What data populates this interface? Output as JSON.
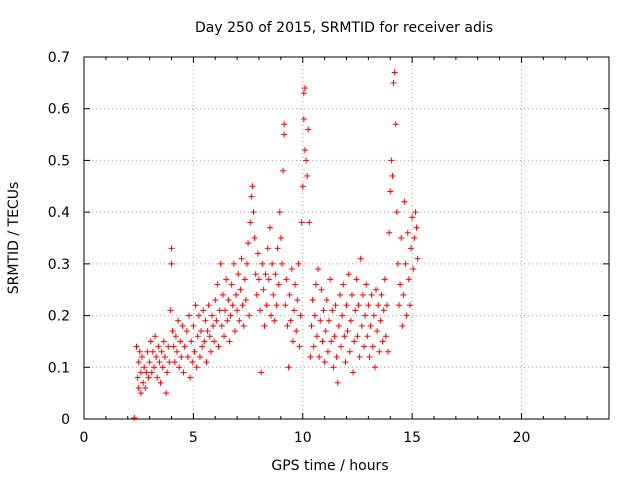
{
  "chart_data": {
    "type": "scatter",
    "title": "Day 250 of 2015, SRMTID for receiver adis",
    "xlabel": "GPS time / hours",
    "ylabel": "SRMTID / TECUs",
    "xlim": [
      0,
      24
    ],
    "ylim": [
      0,
      0.7
    ],
    "xticks": [
      0,
      5,
      10,
      15,
      20
    ],
    "yticks": [
      0,
      0.1,
      0.2,
      0.3,
      0.4,
      0.5,
      0.6,
      0.7
    ],
    "xtick_labels": [
      "0",
      "5",
      "10",
      "15",
      "20"
    ],
    "ytick_labels": [
      "0",
      "0.1",
      "0.2",
      "0.3",
      "0.4",
      "0.5",
      "0.6",
      "0.7"
    ],
    "grid": true,
    "marker": "+",
    "color": "#ff0000",
    "x_range_of_data": [
      2.3,
      15.3
    ],
    "series": [
      {
        "name": "SRMTID",
        "points": [
          [
            2.3,
            0.002
          ],
          [
            2.4,
            0.14
          ],
          [
            2.45,
            0.08
          ],
          [
            2.5,
            0.11
          ],
          [
            2.5,
            0.06
          ],
          [
            2.55,
            0.13
          ],
          [
            2.6,
            0.09
          ],
          [
            2.6,
            0.05
          ],
          [
            2.65,
            0.12
          ],
          [
            2.7,
            0.07
          ],
          [
            2.75,
            0.1
          ],
          [
            2.8,
            0.06
          ],
          [
            2.85,
            0.09
          ],
          [
            2.9,
            0.13
          ],
          [
            2.95,
            0.08
          ],
          [
            3.0,
            0.11
          ],
          [
            3.05,
            0.15
          ],
          [
            3.1,
            0.09
          ],
          [
            3.15,
            0.13
          ],
          [
            3.2,
            0.1
          ],
          [
            3.25,
            0.16
          ],
          [
            3.3,
            0.12
          ],
          [
            3.35,
            0.08
          ],
          [
            3.4,
            0.14
          ],
          [
            3.45,
            0.11
          ],
          [
            3.5,
            0.07
          ],
          [
            3.55,
            0.13
          ],
          [
            3.6,
            0.1
          ],
          [
            3.65,
            0.15
          ],
          [
            3.7,
            0.12
          ],
          [
            3.75,
            0.05
          ],
          [
            3.8,
            0.09
          ],
          [
            3.85,
            0.14
          ],
          [
            3.9,
            0.11
          ],
          [
            3.95,
            0.21
          ],
          [
            4.0,
            0.33
          ],
          [
            4.0,
            0.3
          ],
          [
            4.05,
            0.17
          ],
          [
            4.1,
            0.14
          ],
          [
            4.15,
            0.11
          ],
          [
            4.2,
            0.16
          ],
          [
            4.25,
            0.13
          ],
          [
            4.3,
            0.19
          ],
          [
            4.35,
            0.1
          ],
          [
            4.4,
            0.15
          ],
          [
            4.45,
            0.12
          ],
          [
            4.5,
            0.18
          ],
          [
            4.55,
            0.09
          ],
          [
            4.6,
            0.14
          ],
          [
            4.7,
            0.17
          ],
          [
            4.75,
            0.12
          ],
          [
            4.8,
            0.2
          ],
          [
            4.85,
            0.08
          ],
          [
            4.9,
            0.15
          ],
          [
            4.95,
            0.11
          ],
          [
            5.0,
            0.18
          ],
          [
            5.05,
            0.13
          ],
          [
            5.1,
            0.22
          ],
          [
            5.15,
            0.1
          ],
          [
            5.2,
            0.16
          ],
          [
            5.25,
            0.2
          ],
          [
            5.3,
            0.12
          ],
          [
            5.35,
            0.17
          ],
          [
            5.4,
            0.14
          ],
          [
            5.45,
            0.21
          ],
          [
            5.5,
            0.15
          ],
          [
            5.55,
            0.19
          ],
          [
            5.6,
            0.11
          ],
          [
            5.65,
            0.17
          ],
          [
            5.7,
            0.22
          ],
          [
            5.75,
            0.16
          ],
          [
            5.8,
            0.13
          ],
          [
            5.85,
            0.2
          ],
          [
            5.9,
            0.18
          ],
          [
            5.95,
            0.15
          ],
          [
            6.0,
            0.23
          ],
          [
            6.05,
            0.19
          ],
          [
            6.1,
            0.26
          ],
          [
            6.15,
            0.14
          ],
          [
            6.2,
            0.21
          ],
          [
            6.25,
            0.3
          ],
          [
            6.3,
            0.18
          ],
          [
            6.35,
            0.24
          ],
          [
            6.4,
            0.16
          ],
          [
            6.45,
            0.21
          ],
          [
            6.5,
            0.27
          ],
          [
            6.55,
            0.19
          ],
          [
            6.6,
            0.23
          ],
          [
            6.65,
            0.15
          ],
          [
            6.7,
            0.2
          ],
          [
            6.75,
            0.26
          ],
          [
            6.8,
            0.22
          ],
          [
            6.85,
            0.3
          ],
          [
            6.9,
            0.17
          ],
          [
            6.95,
            0.24
          ],
          [
            7.0,
            0.21
          ],
          [
            7.05,
            0.28
          ],
          [
            7.1,
            0.19
          ],
          [
            7.15,
            0.25
          ],
          [
            7.2,
            0.31
          ],
          [
            7.25,
            0.22
          ],
          [
            7.3,
            0.18
          ],
          [
            7.35,
            0.27
          ],
          [
            7.4,
            0.23
          ],
          [
            7.45,
            0.3
          ],
          [
            7.5,
            0.34
          ],
          [
            7.55,
            0.2
          ],
          [
            7.6,
            0.38
          ],
          [
            7.65,
            0.43
          ],
          [
            7.7,
            0.45
          ],
          [
            7.75,
            0.4
          ],
          [
            7.8,
            0.35
          ],
          [
            7.85,
            0.28
          ],
          [
            7.9,
            0.24
          ],
          [
            7.95,
            0.32
          ],
          [
            8.0,
            0.27
          ],
          [
            8.05,
            0.21
          ],
          [
            8.1,
            0.09
          ],
          [
            8.15,
            0.3
          ],
          [
            8.2,
            0.25
          ],
          [
            8.25,
            0.18
          ],
          [
            8.3,
            0.28
          ],
          [
            8.35,
            0.22
          ],
          [
            8.4,
            0.33
          ],
          [
            8.45,
            0.27
          ],
          [
            8.5,
            0.37
          ],
          [
            8.55,
            0.2
          ],
          [
            8.6,
            0.3
          ],
          [
            8.65,
            0.24
          ],
          [
            8.7,
            0.19
          ],
          [
            8.75,
            0.28
          ],
          [
            8.8,
            0.22
          ],
          [
            8.85,
            0.33
          ],
          [
            8.9,
            0.26
          ],
          [
            8.95,
            0.4
          ],
          [
            9.0,
            0.35
          ],
          [
            9.05,
            0.3
          ],
          [
            9.1,
            0.48
          ],
          [
            9.15,
            0.55
          ],
          [
            9.15,
            0.57
          ],
          [
            9.2,
            0.22
          ],
          [
            9.25,
            0.27
          ],
          [
            9.3,
            0.18
          ],
          [
            9.35,
            0.1
          ],
          [
            9.4,
            0.24
          ],
          [
            9.45,
            0.19
          ],
          [
            9.5,
            0.29
          ],
          [
            9.55,
            0.15
          ],
          [
            9.6,
            0.21
          ],
          [
            9.65,
            0.26
          ],
          [
            9.7,
            0.17
          ],
          [
            9.75,
            0.23
          ],
          [
            9.8,
            0.3
          ],
          [
            9.85,
            0.14
          ],
          [
            9.9,
            0.2
          ],
          [
            9.95,
            0.38
          ],
          [
            10.0,
            0.45
          ],
          [
            10.05,
            0.58
          ],
          [
            10.05,
            0.63
          ],
          [
            10.1,
            0.64
          ],
          [
            10.1,
            0.52
          ],
          [
            10.15,
            0.5
          ],
          [
            10.2,
            0.47
          ],
          [
            10.25,
            0.56
          ],
          [
            10.3,
            0.38
          ],
          [
            10.35,
            0.12
          ],
          [
            10.4,
            0.18
          ],
          [
            10.45,
            0.23
          ],
          [
            10.5,
            0.14
          ],
          [
            10.55,
            0.2
          ],
          [
            10.6,
            0.26
          ],
          [
            10.65,
            0.16
          ],
          [
            10.7,
            0.29
          ],
          [
            10.75,
            0.12
          ],
          [
            10.8,
            0.19
          ],
          [
            10.85,
            0.25
          ],
          [
            10.9,
            0.15
          ],
          [
            10.95,
            0.21
          ],
          [
            11.0,
            0.11
          ],
          [
            11.05,
            0.17
          ],
          [
            11.1,
            0.23
          ],
          [
            11.15,
            0.13
          ],
          [
            11.2,
            0.19
          ],
          [
            11.25,
            0.27
          ],
          [
            11.3,
            0.15
          ],
          [
            11.35,
            0.21
          ],
          [
            11.4,
            0.1
          ],
          [
            11.45,
            0.16
          ],
          [
            11.5,
            0.22
          ],
          [
            11.55,
            0.12
          ],
          [
            11.6,
            0.07
          ],
          [
            11.65,
            0.18
          ],
          [
            11.7,
            0.24
          ],
          [
            11.75,
            0.14
          ],
          [
            11.8,
            0.2
          ],
          [
            11.85,
            0.26
          ],
          [
            11.9,
            0.16
          ],
          [
            11.95,
            0.11
          ],
          [
            12.0,
            0.22
          ],
          [
            12.05,
            0.17
          ],
          [
            12.1,
            0.28
          ],
          [
            12.15,
            0.13
          ],
          [
            12.2,
            0.19
          ],
          [
            12.25,
            0.24
          ],
          [
            12.3,
            0.09
          ],
          [
            12.35,
            0.15
          ],
          [
            12.4,
            0.21
          ],
          [
            12.45,
            0.27
          ],
          [
            12.5,
            0.16
          ],
          [
            12.55,
            0.22
          ],
          [
            12.6,
            0.12
          ],
          [
            12.65,
            0.31
          ],
          [
            12.7,
            0.18
          ],
          [
            12.75,
            0.24
          ],
          [
            12.8,
            0.14
          ],
          [
            12.85,
            0.2
          ],
          [
            12.9,
            0.26
          ],
          [
            12.95,
            0.16
          ],
          [
            13.0,
            0.22
          ],
          [
            13.05,
            0.12
          ],
          [
            13.1,
            0.18
          ],
          [
            13.15,
            0.24
          ],
          [
            13.2,
            0.14
          ],
          [
            13.25,
            0.2
          ],
          [
            13.3,
            0.1
          ],
          [
            13.35,
            0.25
          ],
          [
            13.4,
            0.17
          ],
          [
            13.45,
            0.22
          ],
          [
            13.5,
            0.13
          ],
          [
            13.55,
            0.19
          ],
          [
            13.6,
            0.24
          ],
          [
            13.65,
            0.15
          ],
          [
            13.7,
            0.21
          ],
          [
            13.75,
            0.27
          ],
          [
            13.8,
            0.16
          ],
          [
            13.85,
            0.22
          ],
          [
            13.9,
            0.13
          ],
          [
            13.95,
            0.36
          ],
          [
            14.0,
            0.44
          ],
          [
            14.05,
            0.5
          ],
          [
            14.1,
            0.47
          ],
          [
            14.15,
            0.65
          ],
          [
            14.2,
            0.67
          ],
          [
            14.25,
            0.57
          ],
          [
            14.3,
            0.4
          ],
          [
            14.35,
            0.3
          ],
          [
            14.4,
            0.22
          ],
          [
            14.45,
            0.26
          ],
          [
            14.5,
            0.35
          ],
          [
            14.55,
            0.18
          ],
          [
            14.6,
            0.24
          ],
          [
            14.65,
            0.42
          ],
          [
            14.7,
            0.3
          ],
          [
            14.75,
            0.2
          ],
          [
            14.8,
            0.36
          ],
          [
            14.85,
            0.27
          ],
          [
            14.9,
            0.22
          ],
          [
            14.95,
            0.33
          ],
          [
            15.0,
            0.39
          ],
          [
            15.05,
            0.29
          ],
          [
            15.1,
            0.35
          ],
          [
            15.15,
            0.4
          ],
          [
            15.2,
            0.37
          ],
          [
            15.25,
            0.31
          ]
        ]
      }
    ]
  }
}
